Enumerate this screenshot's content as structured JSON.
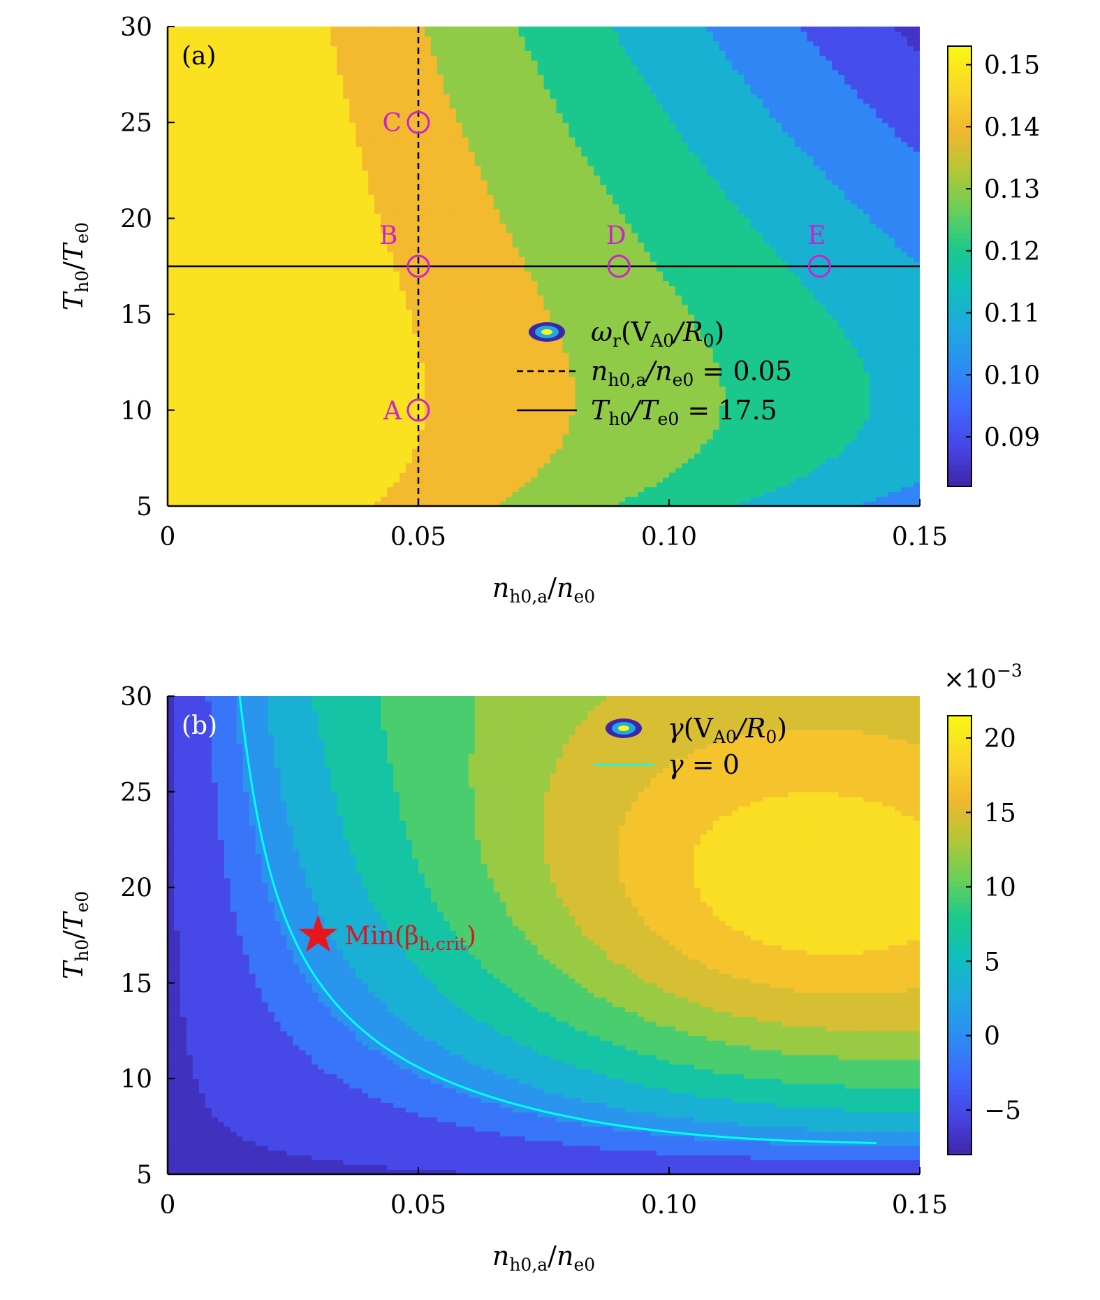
{
  "chart_data": [
    {
      "type": "heatmap",
      "panel_label": "(a)",
      "xlabel": {
        "base": "n",
        "sub": "h0,a",
        "div": "/",
        "base2": "n",
        "sub2": "e0"
      },
      "ylabel": {
        "base": "T",
        "sub": "h0",
        "div": "/",
        "base2": "T",
        "sub2": "e0"
      },
      "xlim": [
        0,
        0.15
      ],
      "ylim": [
        5,
        30
      ],
      "xticks": [
        0,
        0.05,
        0.1,
        0.15
      ],
      "xtick_labels": [
        "0",
        "0.05",
        "0.10",
        "0.15"
      ],
      "yticks": [
        5,
        10,
        15,
        20,
        25,
        30
      ],
      "ytick_labels": [
        "5",
        "10",
        "15",
        "20",
        "25",
        "30"
      ],
      "colorbar": {
        "range": [
          0.082,
          0.153
        ],
        "ticks": [
          0.09,
          0.1,
          0.11,
          0.12,
          0.13,
          0.14,
          0.15
        ],
        "tick_labels": [
          "0.09",
          "0.10",
          "0.11",
          "0.12",
          "0.13",
          "0.14",
          "0.15"
        ]
      },
      "levels": [
        0.085,
        0.095,
        0.105,
        0.115,
        0.125,
        0.135,
        0.145,
        0.152
      ],
      "points": [
        {
          "label": "A",
          "x": 0.05,
          "y": 10
        },
        {
          "label": "B",
          "x": 0.05,
          "y": 17.5
        },
        {
          "label": "C",
          "x": 0.05,
          "y": 25
        },
        {
          "label": "D",
          "x": 0.09,
          "y": 17.5
        },
        {
          "label": "E",
          "x": 0.13,
          "y": 17.5
        }
      ],
      "vline_x": 0.05,
      "hline_y": 17.5,
      "legend": [
        {
          "kind": "contour",
          "base": "ω",
          "sub": "r",
          "mid": "(V",
          "sub2": "A0",
          "tail": "/R",
          "sub3": "0",
          "end": ")"
        },
        {
          "kind": "dashed",
          "base": "n",
          "sub": "h0,a",
          "mid": "/n",
          "sub2": "e0",
          "tail": " = 0.05"
        },
        {
          "kind": "solid",
          "base": "T",
          "sub": "h0",
          "mid": "/T",
          "sub2": "e0",
          "tail": " = 17.5"
        }
      ]
    },
    {
      "type": "heatmap",
      "panel_label": "(b)",
      "xlabel": {
        "base": "n",
        "sub": "h0,a",
        "div": "/",
        "base2": "n",
        "sub2": "e0"
      },
      "ylabel": {
        "base": "T",
        "sub": "h0",
        "div": "/",
        "base2": "T",
        "sub2": "e0"
      },
      "xlim": [
        0,
        0.15
      ],
      "ylim": [
        5,
        30
      ],
      "xticks": [
        0,
        0.05,
        0.1,
        0.15
      ],
      "xtick_labels": [
        "0",
        "0.05",
        "0.10",
        "0.15"
      ],
      "yticks": [
        5,
        10,
        15,
        20,
        25,
        30
      ],
      "ytick_labels": [
        "5",
        "10",
        "15",
        "20",
        "25",
        "30"
      ],
      "colorbar": {
        "range": [
          -8,
          21.5
        ],
        "ticks": [
          -5,
          0,
          5,
          10,
          15,
          20
        ],
        "tick_labels": [
          "−5",
          "0",
          "5",
          "10",
          "15",
          "20"
        ],
        "multiplier": "×10",
        "multiplier_exp": "−3"
      },
      "levels": [
        -7,
        -3,
        -0.5,
        2,
        5,
        8,
        11,
        13.5,
        16,
        18,
        20.5
      ],
      "zero_contour": true,
      "star": {
        "x": 0.03,
        "y": 17.5,
        "label": "Min(",
        "beta": "β",
        "sub": "h,crit",
        "end": ")"
      },
      "legend": [
        {
          "kind": "contour",
          "base": "γ",
          "mid": "(V",
          "sub2": "A0",
          "tail": "/R",
          "sub3": "0",
          "end": ")"
        },
        {
          "kind": "cyan",
          "base": "γ",
          "tail": " = 0"
        }
      ]
    }
  ],
  "colors": {
    "parula": [
      "#3e26a8",
      "#4744e5",
      "#3e69fc",
      "#2d8cf2",
      "#1fa9e1",
      "#10bfbb",
      "#1bc98b",
      "#6acf5a",
      "#b5c735",
      "#f2b730",
      "#fad628",
      "#f9f714"
    ],
    "points": "#cc22cc",
    "star": "#e8161c",
    "zero_contour": "#00ffff"
  }
}
